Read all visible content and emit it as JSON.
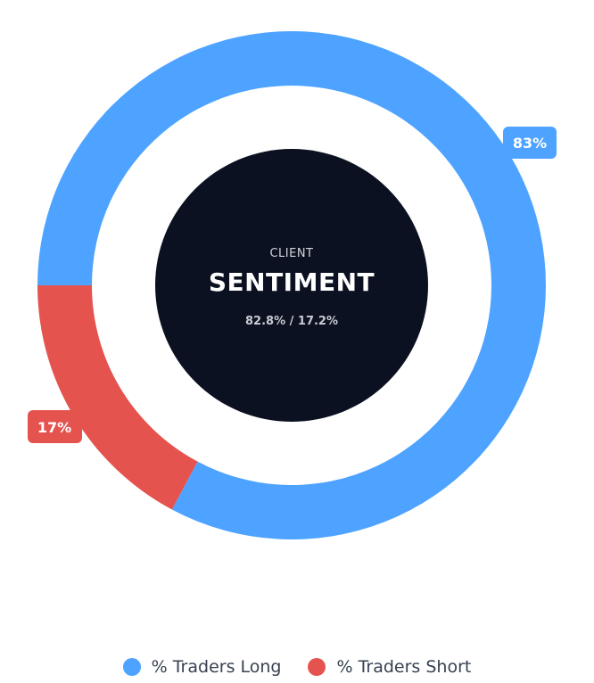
{
  "chart_data": {
    "type": "pie",
    "series": [
      {
        "name": "% Traders Long",
        "value": 82.8,
        "label": "83%",
        "color": "#4da3ff"
      },
      {
        "name": "% Traders Short",
        "value": 17.2,
        "label": "17%",
        "color": "#e5534f"
      }
    ],
    "center": {
      "subtitle": "CLIENT",
      "title": "SENTIMENT",
      "detail": "82.8% / 17.2%"
    },
    "legend": "bottom"
  },
  "colors": {
    "long": "#4da3ff",
    "short": "#e5534f",
    "center_fill": "#0b1120"
  }
}
